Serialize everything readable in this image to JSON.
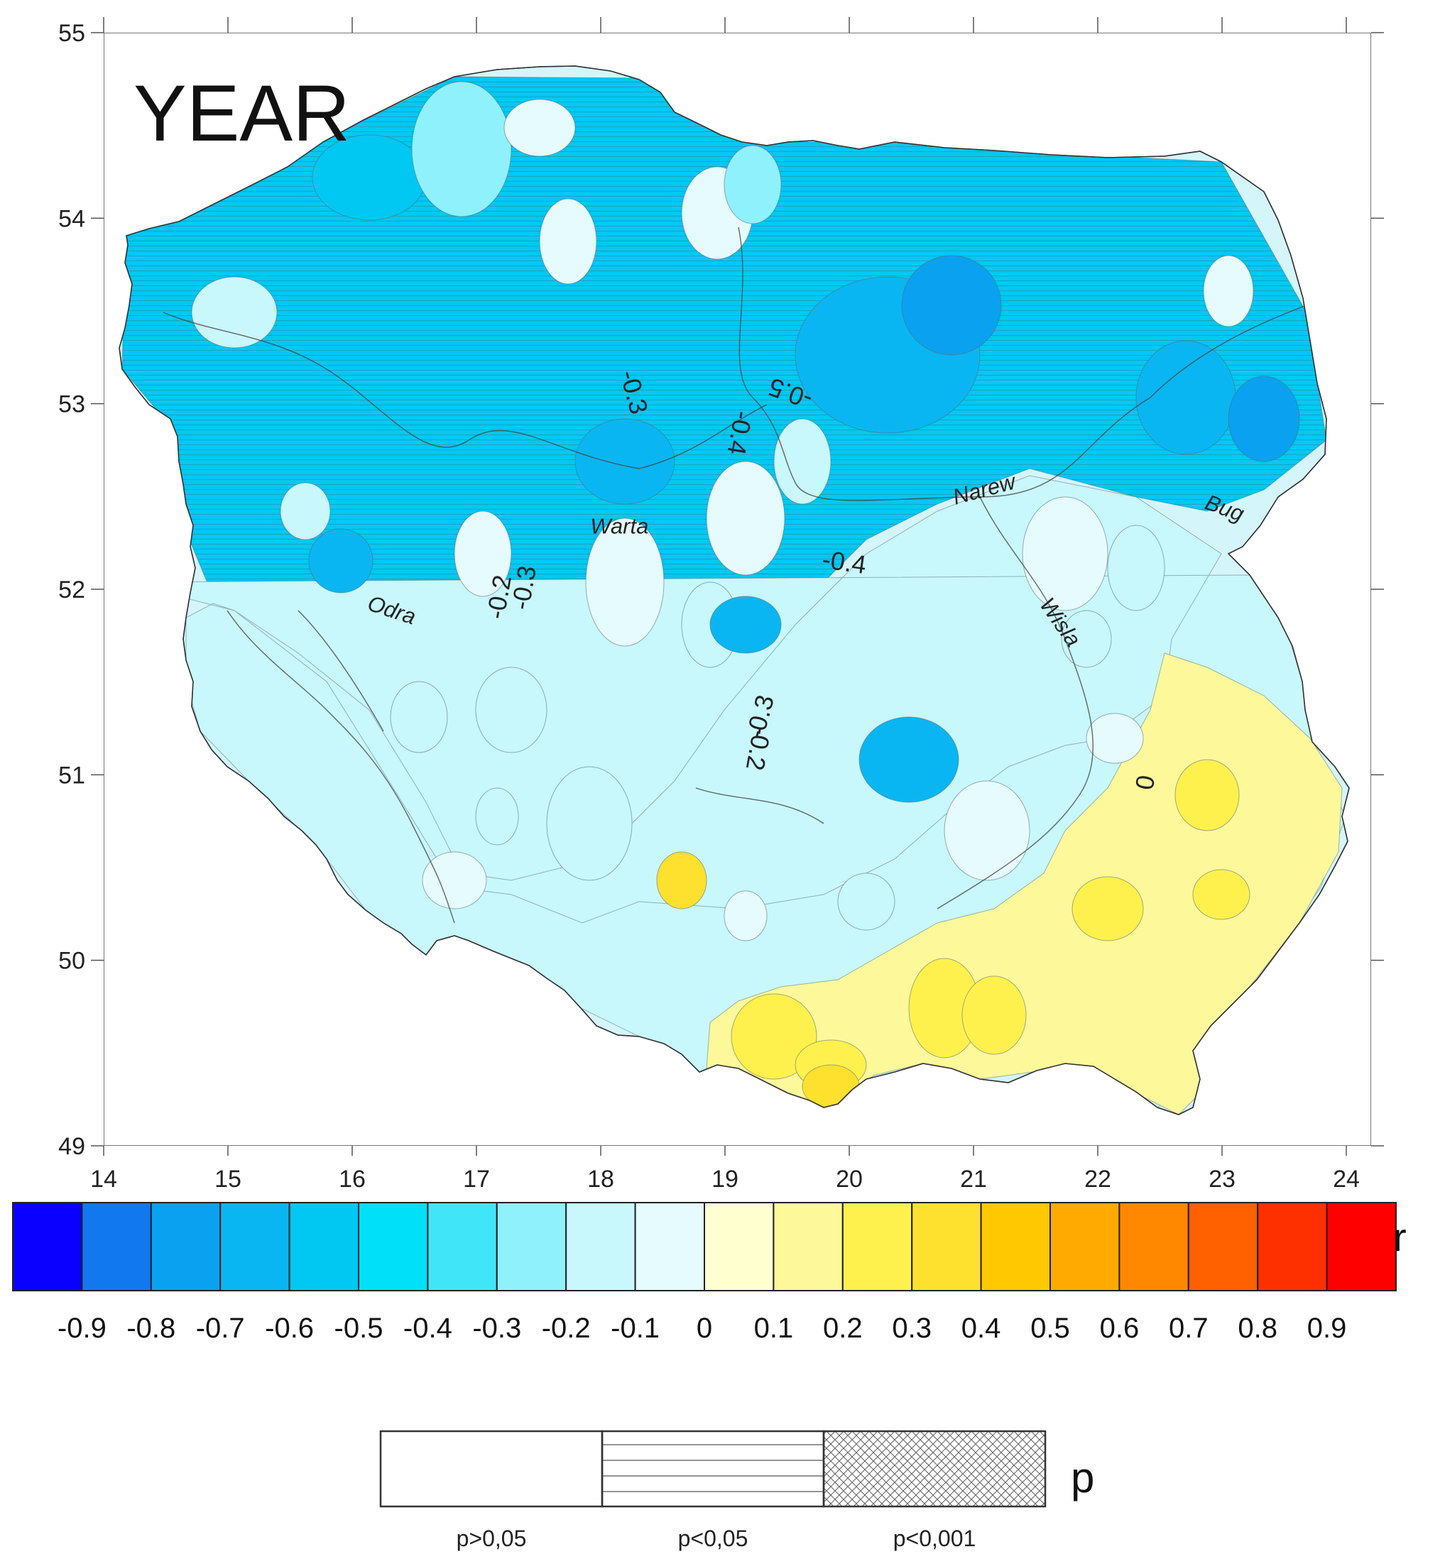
{
  "title": "YEAR",
  "axes": {
    "x_ticks": [
      "14",
      "15",
      "16",
      "17",
      "18",
      "19",
      "20",
      "21",
      "22",
      "23",
      "24"
    ],
    "y_ticks": [
      "55",
      "54",
      "53",
      "52",
      "51",
      "50",
      "49"
    ],
    "xlim": [
      14,
      24.2
    ],
    "ylim": [
      49,
      55
    ]
  },
  "rivers": [
    {
      "name": "Odra",
      "lon": 16.3,
      "lat": 51.85
    },
    {
      "name": "Warta",
      "lon": 18.15,
      "lat": 52.3
    },
    {
      "name": "Narew",
      "lon": 21.1,
      "lat": 52.5
    },
    {
      "name": "Bug",
      "lon": 23.0,
      "lat": 52.4
    },
    {
      "name": "Wisla",
      "lon": 21.65,
      "lat": 51.8
    }
  ],
  "contour_labels": [
    {
      "text": "-0.3",
      "lon": 18.2,
      "lat": 53.05,
      "angle": 75
    },
    {
      "text": "-0.4",
      "lon": 19.05,
      "lat": 52.85,
      "angle": 100
    },
    {
      "text": "-0.5",
      "lon": 19.55,
      "lat": 53.1,
      "angle": 200
    },
    {
      "text": "-0.4",
      "lon": 19.95,
      "lat": 52.1,
      "angle": 8
    },
    {
      "text": "-0.2",
      "lon": 17.25,
      "lat": 51.95,
      "angle": -80
    },
    {
      "text": "-0.3",
      "lon": 17.45,
      "lat": 52.0,
      "angle": -80
    },
    {
      "text": "-0.3",
      "lon": 19.35,
      "lat": 51.3,
      "angle": -75
    },
    {
      "text": "-0.2",
      "lon": 19.2,
      "lat": 51.15,
      "angle": 100
    },
    {
      "text": "0",
      "lon": 22.45,
      "lat": 50.95,
      "angle": -80
    }
  ],
  "r_scale": {
    "symbol": "r",
    "labels": [
      "-0.9",
      "-0.8",
      "-0.7",
      "-0.6",
      "-0.5",
      "-0.4",
      "-0.3",
      "-0.2",
      "-0.1",
      "0",
      "0.1",
      "0.2",
      "0.3",
      "0.4",
      "0.5",
      "0.6",
      "0.7",
      "0.8",
      "0.9"
    ],
    "colors": [
      "#0a00ff",
      "#1278f0",
      "#0aa1f0",
      "#0ab6f2",
      "#00c8f3",
      "#00e0f8",
      "#40e6f8",
      "#8ef1fb",
      "#c8f7fc",
      "#e6fbfd",
      "#ffffd0",
      "#fdf89a",
      "#fef14e",
      "#fee02e",
      "#ffc800",
      "#ffaa00",
      "#ff8800",
      "#ff6000",
      "#ff3000",
      "#ff0000"
    ]
  },
  "p_scale": {
    "symbol": "p",
    "labels": [
      "p>0,05",
      "p<0,05",
      "p<0,001"
    ]
  }
}
